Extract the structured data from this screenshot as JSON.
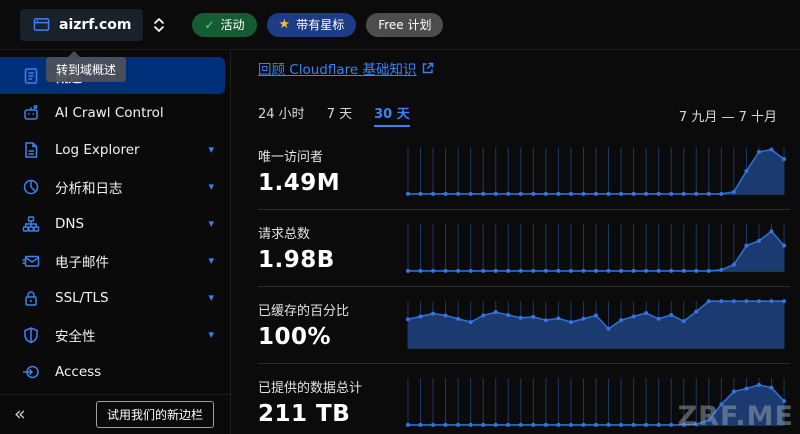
{
  "topbar": {
    "domain": "aizrf.com",
    "badges": {
      "active": "活动",
      "active_icon": "check-icon",
      "starred": "带有星标",
      "starred_icon": "star-icon",
      "plan": "Free 计划"
    }
  },
  "sidebar": {
    "tooltip": "转到域概述",
    "items": [
      {
        "label": "概述",
        "icon": "overview-icon",
        "selected": true,
        "expandable": false
      },
      {
        "label": "AI Crawl Control",
        "icon": "robot-icon",
        "selected": false,
        "expandable": false
      },
      {
        "label": "Log Explorer",
        "icon": "log-document-icon",
        "selected": false,
        "expandable": true
      },
      {
        "label": "分析和日志",
        "icon": "analytics-pie-icon",
        "selected": false,
        "expandable": true
      },
      {
        "label": "DNS",
        "icon": "dns-tree-icon",
        "selected": false,
        "expandable": true
      },
      {
        "label": "电子邮件",
        "icon": "email-icon",
        "selected": false,
        "expandable": true
      },
      {
        "label": "SSL/TLS",
        "icon": "padlock-icon",
        "selected": false,
        "expandable": true
      },
      {
        "label": "安全性",
        "icon": "shield-icon",
        "selected": false,
        "expandable": true
      },
      {
        "label": "Access",
        "icon": "access-icon",
        "selected": false,
        "expandable": false
      }
    ],
    "collapse_glyph": "«",
    "new_sidebar_button": "试用我们的新边栏"
  },
  "main": {
    "review_link": "回顾 Cloudflare 基础知识",
    "tabs": [
      {
        "label": "24 小时",
        "selected": false
      },
      {
        "label": "7 天",
        "selected": false
      },
      {
        "label": "30 天",
        "selected": true
      }
    ],
    "date_range": "7 九月 — 7 十月",
    "metrics": [
      {
        "label": "唯一访问者",
        "value": "1.49M"
      },
      {
        "label": "请求总数",
        "value": "1.98B"
      },
      {
        "label": "已缓存的百分比",
        "value": "100%"
      },
      {
        "label": "已提供的数据总计",
        "value": "211 TB"
      }
    ],
    "watermark": "ZRF.ME"
  },
  "colors": {
    "accent_blue": "#3b82f6",
    "nav_selected_bg": "#002f7a",
    "chart_line": "#2f6ed8",
    "chart_dot": "#3575e0",
    "chart_fill": "#1b3a70",
    "chart_grid": "#1b3a66",
    "badge_green_bg": "#155c33",
    "badge_blue_bg": "#1c3d85",
    "badge_gray_bg": "#4d4d4d"
  },
  "chart_data": [
    {
      "type": "area",
      "title": "唯一访问者",
      "total": "1.49M",
      "x_range": "7 九月 — 7 十月 (30 天, 每日)",
      "unit": "percent_of_peak",
      "values": [
        2,
        2,
        2,
        2,
        2,
        2,
        2,
        2,
        2,
        2,
        2,
        2,
        2,
        2,
        2,
        2,
        2,
        2,
        2,
        2,
        2,
        2,
        2,
        2,
        2,
        2,
        6,
        50,
        90,
        95,
        75
      ]
    },
    {
      "type": "area",
      "title": "请求总数",
      "total": "1.98B",
      "x_range": "7 九月 — 7 十月 (30 天, 每日)",
      "unit": "percent_of_peak",
      "values": [
        2,
        2,
        2,
        2,
        2,
        2,
        2,
        2,
        2,
        2,
        2,
        2,
        2,
        2,
        2,
        2,
        2,
        2,
        2,
        2,
        2,
        2,
        2,
        2,
        2,
        4,
        15,
        55,
        65,
        85,
        55
      ]
    },
    {
      "type": "area",
      "title": "已缓存的百分比",
      "total": "100%",
      "x_range": "7 九月 — 7 十月 (30 天, 每日)",
      "unit": "percent_of_peak",
      "values": [
        62,
        68,
        74,
        70,
        63,
        56,
        70,
        77,
        71,
        65,
        67,
        60,
        64,
        56,
        63,
        70,
        42,
        60,
        68,
        75,
        63,
        71,
        58,
        78,
        100,
        100,
        100,
        100,
        100,
        100,
        100
      ]
    },
    {
      "type": "area",
      "title": "已提供的数据总计",
      "total": "211 TB",
      "x_range": "7 九月 — 7 十月 (30 天, 每日)",
      "unit": "percent_of_peak",
      "values": [
        2,
        2,
        2,
        2,
        2,
        2,
        2,
        2,
        2,
        2,
        2,
        2,
        2,
        2,
        2,
        2,
        2,
        2,
        2,
        2,
        2,
        2,
        2,
        3,
        12,
        45,
        72,
        78,
        86,
        80,
        52
      ]
    }
  ]
}
